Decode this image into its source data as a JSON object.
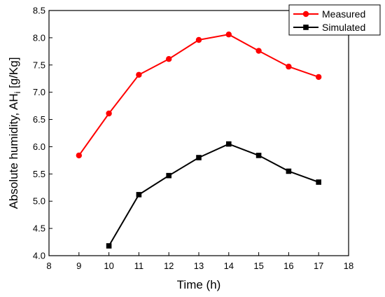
{
  "chart_data": {
    "type": "line",
    "title": "",
    "xlabel": "Time (h)",
    "ylabel_main": "Absolute humidity, AH",
    "ylabel_sub": "i",
    "ylabel_unit": " [g/Kg]",
    "xlim": [
      8,
      18
    ],
    "ylim": [
      4.0,
      8.5
    ],
    "xticks": [
      "8",
      "9",
      "10",
      "11",
      "12",
      "13",
      "14",
      "15",
      "16",
      "17",
      "18"
    ],
    "yticks": [
      "4.0",
      "4.5",
      "5.0",
      "5.5",
      "6.0",
      "6.5",
      "7.0",
      "7.5",
      "8.0",
      "8.5"
    ],
    "grid": false,
    "legend_position": "top-right",
    "series": [
      {
        "name": "Measured",
        "color": "#ff0000",
        "marker": "circle",
        "x": [
          9,
          10,
          11,
          12,
          13,
          14,
          15,
          16,
          17
        ],
        "y": [
          5.84,
          6.61,
          7.32,
          7.61,
          7.96,
          8.06,
          7.76,
          7.47,
          7.28
        ]
      },
      {
        "name": "Simulated",
        "color": "#000000",
        "marker": "square",
        "x": [
          10,
          11,
          12,
          13,
          14,
          15,
          16,
          17
        ],
        "y": [
          4.18,
          5.12,
          5.47,
          5.8,
          6.05,
          5.84,
          5.55,
          5.35
        ]
      }
    ]
  }
}
